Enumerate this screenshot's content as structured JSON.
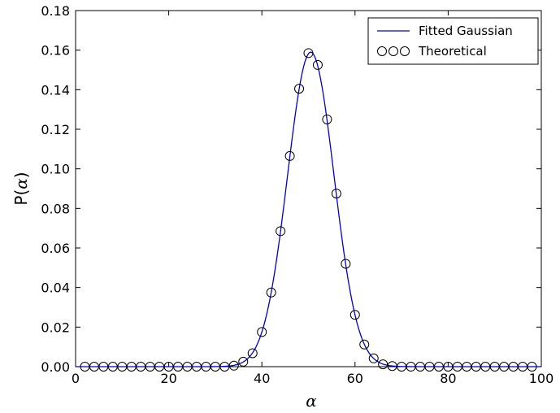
{
  "chart_data": {
    "type": "line",
    "title": "",
    "xlabel": "α",
    "ylabel_prefix": "P(",
    "ylabel_var": "α",
    "ylabel_suffix": ")",
    "xlim": [
      0,
      100
    ],
    "ylim": [
      0,
      0.18
    ],
    "x_ticks": [
      0,
      20,
      40,
      60,
      80,
      100
    ],
    "x_tick_labels": [
      "0",
      "20",
      "40",
      "60",
      "80",
      "100"
    ],
    "y_ticks": [
      0,
      0.02,
      0.04,
      0.06,
      0.08,
      0.1,
      0.12,
      0.14,
      0.16,
      0.18
    ],
    "y_tick_labels": [
      "0.00",
      "0.02",
      "0.04",
      "0.06",
      "0.08",
      "0.10",
      "0.12",
      "0.14",
      "0.16",
      "0.18"
    ],
    "grid": false,
    "legend_position": "top-right",
    "series": [
      {
        "name": "Fitted Gaussian",
        "kind": "line",
        "color": "#0000cc",
        "gaussian": {
          "amplitude": 0.159,
          "mean": 50.5,
          "sigma": 5.0
        }
      },
      {
        "name": "Theoretical",
        "kind": "markers",
        "color": "#000000",
        "x": [
          2,
          4,
          6,
          8,
          10,
          12,
          14,
          16,
          18,
          20,
          22,
          24,
          26,
          28,
          30,
          32,
          34,
          36,
          38,
          40,
          42,
          44,
          46,
          48,
          50,
          52,
          54,
          56,
          58,
          60,
          62,
          64,
          66,
          68,
          70,
          72,
          74,
          76,
          78,
          80,
          82,
          84,
          86,
          88,
          90,
          92,
          94,
          96,
          98
        ],
        "y": [
          0,
          0,
          0,
          0,
          0,
          0,
          0,
          0,
          0,
          0,
          0,
          0,
          0,
          0,
          0,
          0,
          0.0005,
          0.0025,
          0.0068,
          0.0175,
          0.0375,
          0.0685,
          0.1065,
          0.1405,
          0.1585,
          0.1525,
          0.125,
          0.0875,
          0.052,
          0.0262,
          0.0112,
          0.0042,
          0.0012,
          0.0003,
          0,
          0,
          0,
          0,
          0,
          0,
          0,
          0,
          0,
          0,
          0,
          0,
          0,
          0,
          0
        ]
      }
    ]
  }
}
